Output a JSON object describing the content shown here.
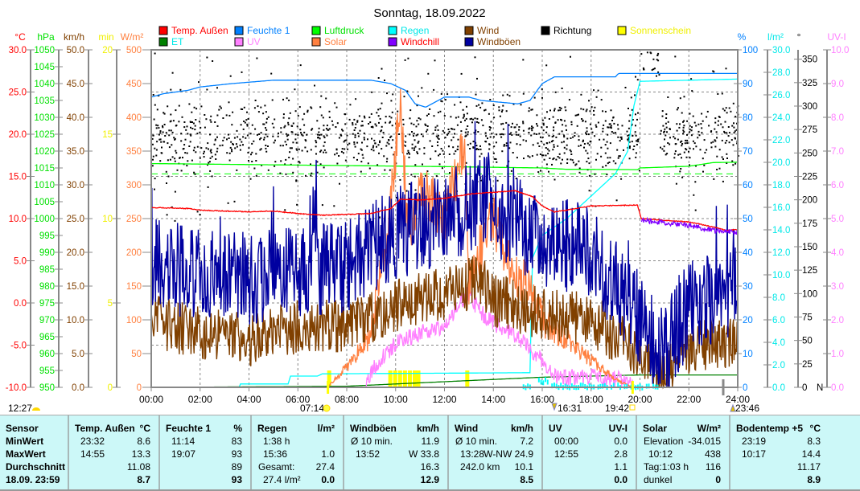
{
  "title": "Sonntag, 18.09.2022",
  "legend": [
    {
      "label": "Temp. Außen",
      "swatch": "#ff0000",
      "text": "#ff0000"
    },
    {
      "label": "Feuchte 1",
      "swatch": "#0080ff",
      "text": "#0080ff"
    },
    {
      "label": "Luftdruck",
      "swatch": "#00ff00",
      "text": "#00e000"
    },
    {
      "label": "Regen",
      "swatch": "#00ffff",
      "text": "#00e8e8"
    },
    {
      "label": "Wind",
      "swatch": "#804000",
      "text": "#804000"
    },
    {
      "label": "Richtung",
      "swatch": "#000000",
      "text": "#000000"
    },
    {
      "label": "Sonnenschein",
      "swatch": "#ffff00",
      "text": "#f0f000"
    },
    {
      "label": "ET",
      "swatch": "#008000",
      "text": "#00e8e8"
    },
    {
      "label": "UV",
      "swatch": "#ff80ff",
      "text": "#ff80ff"
    },
    {
      "label": "Solar",
      "swatch": "#ff8040",
      "text": "#ff8040"
    },
    {
      "label": "Windchill",
      "swatch": "#8000ff",
      "text": "#ff0000"
    },
    {
      "label": "Windböen",
      "swatch": "#0000a0",
      "text": "#804000"
    }
  ],
  "chart_data": {
    "type": "line",
    "title": "Sonntag, 18.09.2022",
    "x_ticks": [
      "00:00",
      "02:00",
      "04:00",
      "06:00",
      "08:00",
      "10:00",
      "12:00",
      "14:00",
      "16:00",
      "18:00",
      "20:00",
      "22:00",
      "24:00"
    ],
    "xlim_hours": [
      0,
      24
    ],
    "grid": true,
    "axes": {
      "temp": {
        "unit": "°C",
        "color": "#ff0000",
        "min": -10,
        "max": 30,
        "ticks": [
          "30.0",
          "25.0",
          "20.0",
          "15.0",
          "10.0",
          "5.0",
          "0.0",
          "-5.0",
          "-10.0"
        ]
      },
      "hpa": {
        "unit": "hPa",
        "color": "#00e000",
        "min": 950,
        "max": 1050,
        "ticks": [
          "1050",
          "1045",
          "1040",
          "1035",
          "1030",
          "1025",
          "1020",
          "1015",
          "1010",
          "1005",
          "1000",
          "995",
          "990",
          "985",
          "980",
          "975",
          "970",
          "965",
          "960",
          "955",
          "950"
        ]
      },
      "kmh": {
        "unit": "km/h",
        "color": "#804000",
        "min": 0,
        "max": 50,
        "ticks": [
          "50.0",
          "45.0",
          "40.0",
          "35.0",
          "30.0",
          "25.0",
          "20.0",
          "15.0",
          "10.0",
          "5.0",
          "0.0"
        ]
      },
      "min": {
        "unit": "min",
        "color": "#f0f000",
        "min": 0,
        "max": 20,
        "ticks": [
          "20",
          "15",
          "10",
          "5",
          "0"
        ]
      },
      "wm2": {
        "unit": "W/m²",
        "color": "#ff8040",
        "min": 0,
        "max": 500,
        "ticks": [
          "500",
          "450",
          "400",
          "350",
          "300",
          "250",
          "200",
          "150",
          "100",
          "50",
          "0"
        ]
      },
      "pct": {
        "unit": "%",
        "color": "#0080ff",
        "min": 0,
        "max": 100,
        "ticks": [
          "100",
          "90",
          "80",
          "70",
          "60",
          "50",
          "40",
          "30",
          "20",
          "10",
          "0"
        ]
      },
      "rain": {
        "unit": "l/m²",
        "color": "#00e8e8",
        "min": 0,
        "max": 30,
        "ticks": [
          "30.0",
          "28.0",
          "26.0",
          "24.0",
          "22.0",
          "20.0",
          "18.0",
          "16.0",
          "14.0",
          "12.0",
          "10.0",
          "8.0",
          "6.0",
          "4.0",
          "2.0",
          "0.0"
        ]
      },
      "deg": {
        "unit": "°",
        "color": "#000000",
        "min": 0,
        "max": 360,
        "ticks": [
          "350",
          "325",
          "300",
          "275",
          "250",
          "225",
          "200",
          "175",
          "150",
          "125",
          "100",
          "75",
          "50",
          "25",
          "0"
        ],
        "zero_label": "N"
      },
      "uv": {
        "unit": "UV-I",
        "color": "#ff80ff",
        "min": 0,
        "max": 10,
        "ticks": [
          "10.0",
          "9.0",
          "8.0",
          "7.0",
          "6.0",
          "5.0",
          "4.0",
          "3.0",
          "2.0",
          "1.0",
          "0.0"
        ]
      }
    },
    "reference_pressure": 1013.25,
    "series": [
      {
        "name": "Temp. Außen",
        "axis": "temp",
        "color": "#ff0000",
        "noise": 0.05,
        "points": [
          [
            0,
            11.3
          ],
          [
            1.5,
            11.2
          ],
          [
            2,
            11.0
          ],
          [
            4,
            10.8
          ],
          [
            5,
            10.9
          ],
          [
            6,
            10.6
          ],
          [
            7,
            10.4
          ],
          [
            8,
            10.5
          ],
          [
            9,
            10.6
          ],
          [
            9.8,
            11.2
          ],
          [
            10.2,
            12.3
          ],
          [
            11,
            12.2
          ],
          [
            12,
            12.4
          ],
          [
            13,
            12.9
          ],
          [
            14.9,
            13.3
          ],
          [
            15.6,
            12.6
          ],
          [
            16,
            11.5
          ],
          [
            16.5,
            10.8
          ],
          [
            17,
            11.0
          ],
          [
            18,
            11.5
          ],
          [
            19.9,
            11.6
          ],
          [
            20.05,
            10.0
          ],
          [
            21,
            9.8
          ],
          [
            22,
            9.6
          ],
          [
            23,
            9.0
          ],
          [
            23.53,
            8.6
          ],
          [
            24,
            8.7
          ]
        ]
      },
      {
        "name": "Feuchte 1",
        "axis": "pct",
        "color": "#0080ff",
        "noise": 0,
        "points": [
          [
            0,
            86
          ],
          [
            0.5,
            87
          ],
          [
            1.5,
            88
          ],
          [
            2,
            89
          ],
          [
            3.3,
            90
          ],
          [
            5,
            91
          ],
          [
            9,
            91
          ],
          [
            9.8,
            90
          ],
          [
            10.4,
            88
          ],
          [
            10.8,
            84
          ],
          [
            11.23,
            83
          ],
          [
            12,
            86
          ],
          [
            13,
            86
          ],
          [
            13.5,
            85
          ],
          [
            15,
            84
          ],
          [
            15.5,
            85
          ],
          [
            16,
            90
          ],
          [
            16.5,
            92
          ],
          [
            19,
            92
          ],
          [
            19.12,
            93
          ],
          [
            24,
            93
          ]
        ]
      },
      {
        "name": "Luftdruck",
        "axis": "hpa",
        "color": "#00ff00",
        "noise": 0,
        "points": [
          [
            0,
            1016.3
          ],
          [
            4,
            1016
          ],
          [
            8,
            1015.7
          ],
          [
            12,
            1015.4
          ],
          [
            16,
            1015
          ],
          [
            17,
            1014.6
          ],
          [
            19.9,
            1014.5
          ],
          [
            20,
            1015
          ],
          [
            22,
            1015.5
          ],
          [
            23,
            1016.6
          ],
          [
            24,
            1016.7
          ]
        ]
      },
      {
        "name": "Regen",
        "axis": "rain",
        "color": "#00ffff",
        "noise": 0,
        "points": [
          [
            0,
            0
          ],
          [
            3.6,
            0
          ],
          [
            3.65,
            0.3
          ],
          [
            5.6,
            0.3
          ],
          [
            5.7,
            1.0
          ],
          [
            6.8,
            1.0
          ],
          [
            7,
            1.2
          ],
          [
            15.5,
            1.3
          ],
          [
            15.6,
            11.5
          ],
          [
            16,
            13.5
          ],
          [
            17,
            15
          ],
          [
            18,
            17
          ],
          [
            19,
            19
          ],
          [
            19.5,
            21
          ],
          [
            19.75,
            25
          ],
          [
            20,
            27.2
          ],
          [
            24,
            27.4
          ]
        ]
      },
      {
        "name": "ET",
        "axis": "rain",
        "color": "#008000",
        "noise": 0,
        "points": [
          [
            0,
            0
          ],
          [
            8,
            0.1
          ],
          [
            10,
            0.3
          ],
          [
            12,
            0.5
          ],
          [
            14,
            0.7
          ],
          [
            16,
            0.9
          ],
          [
            18,
            1.0
          ],
          [
            20,
            1.1
          ],
          [
            24,
            1.1
          ]
        ]
      },
      {
        "name": "Solar",
        "axis": "wm2",
        "color": "#ff8040",
        "noise": 40,
        "points": [
          [
            0,
            0
          ],
          [
            7.2,
            0
          ],
          [
            7.6,
            15
          ],
          [
            8,
            30
          ],
          [
            9,
            80
          ],
          [
            9.7,
            220
          ],
          [
            10.2,
            438
          ],
          [
            10.5,
            220
          ],
          [
            11,
            300
          ],
          [
            12,
            250
          ],
          [
            12.8,
            360
          ],
          [
            13,
            160
          ],
          [
            14,
            250
          ],
          [
            15,
            160
          ],
          [
            15.5,
            150
          ],
          [
            16,
            100
          ],
          [
            17,
            70
          ],
          [
            18,
            40
          ],
          [
            19,
            12
          ],
          [
            19.7,
            0
          ],
          [
            24,
            0
          ]
        ]
      },
      {
        "name": "UV",
        "axis": "uv",
        "color": "#ff80ff",
        "noise": 0.25,
        "points": [
          [
            0,
            0
          ],
          [
            8.8,
            0
          ],
          [
            9,
            0.5
          ],
          [
            10,
            1.3
          ],
          [
            11,
            1.6
          ],
          [
            12,
            1.8
          ],
          [
            12.92,
            2.8
          ],
          [
            13.5,
            2.2
          ],
          [
            14,
            1.9
          ],
          [
            15,
            1.5
          ],
          [
            16,
            0.8
          ],
          [
            16.5,
            0.3
          ],
          [
            18,
            0.3
          ],
          [
            19.6,
            0.2
          ],
          [
            19.7,
            0
          ],
          [
            24,
            0
          ]
        ]
      },
      {
        "name": "Windchill",
        "axis": "temp",
        "color": "#8000ff",
        "noise": 0.3,
        "points": [
          [
            20.05,
            9.8
          ],
          [
            21,
            9.5
          ],
          [
            22,
            9.2
          ],
          [
            23,
            8.6
          ],
          [
            24,
            8.4
          ]
        ]
      },
      {
        "name": "Wind",
        "axis": "kmh",
        "color": "#804000",
        "noise": 4,
        "points": [
          [
            0,
            10
          ],
          [
            2,
            8
          ],
          [
            4,
            7
          ],
          [
            6,
            9
          ],
          [
            8,
            9
          ],
          [
            10,
            12
          ],
          [
            12,
            14
          ],
          [
            13.47,
            16
          ],
          [
            14,
            13
          ],
          [
            16,
            11
          ],
          [
            18,
            10
          ],
          [
            20,
            5
          ],
          [
            21,
            2
          ],
          [
            22,
            6
          ],
          [
            24,
            7
          ]
        ]
      },
      {
        "name": "Windböen",
        "axis": "kmh",
        "color": "#0000a0",
        "noise": 7,
        "points": [
          [
            0,
            18
          ],
          [
            4,
            16
          ],
          [
            8,
            18
          ],
          [
            10,
            23
          ],
          [
            12,
            25
          ],
          [
            13.87,
            28
          ],
          [
            14,
            26
          ],
          [
            16,
            22
          ],
          [
            18,
            20
          ],
          [
            20,
            10
          ],
          [
            21,
            5
          ],
          [
            22,
            12
          ],
          [
            24,
            14
          ]
        ]
      }
    ],
    "sunshine_minutes": [
      [
        7.2,
        1
      ],
      [
        9.7,
        1
      ],
      [
        9.9,
        1
      ],
      [
        10.1,
        1
      ],
      [
        10.3,
        1
      ],
      [
        10.5,
        1
      ],
      [
        10.7,
        1
      ],
      [
        10.85,
        1
      ],
      [
        12.85,
        1
      ]
    ],
    "direction_mean_deg": 268
  },
  "markers": {
    "left": "12:27",
    "sunrise": "07:14",
    "moonrise": "16:31",
    "sunset": "19:42",
    "moonset": "23:46"
  },
  "table": {
    "sensor": [
      "Sensor",
      "MinWert",
      "MaxWert",
      "Durchschnitt",
      "18.09. 23:59"
    ],
    "columns": [
      {
        "label": "Temp. Außen",
        "unit": "°C",
        "rows": [
          [
            "23:32",
            "8.6"
          ],
          [
            "14:55",
            "13.3"
          ],
          [
            "",
            "11.08"
          ],
          [
            "",
            "8.7"
          ]
        ]
      },
      {
        "label": "Feuchte 1",
        "unit": "%",
        "rows": [
          [
            "11:14",
            "83"
          ],
          [
            "19:07",
            "93"
          ],
          [
            "",
            "89"
          ],
          [
            "",
            "93"
          ]
        ]
      },
      {
        "label": "Regen",
        "unit": "l/m²",
        "rows": [
          [
            "1:38 h",
            ""
          ],
          [
            "15:36",
            "1.0"
          ],
          [
            "Gesamt:",
            "27.4"
          ],
          [
            "27.4 l/m²",
            "0.0"
          ]
        ]
      },
      {
        "label": "Windböen",
        "unit": "km/h",
        "rows": [
          [
            "Ø 10 min.",
            "11.9"
          ],
          [
            "13:52",
            "W 33.8"
          ],
          [
            "",
            "16.3"
          ],
          [
            "",
            "12.9"
          ]
        ]
      },
      {
        "label": "Wind",
        "unit": "km/h",
        "rows": [
          [
            "Ø 10 min.",
            "7.2"
          ],
          [
            "13:28",
            "W-NW 24.9"
          ],
          [
            "242.0 km",
            "10.1"
          ],
          [
            "",
            "8.5"
          ]
        ]
      },
      {
        "label": "UV",
        "unit": "UV-I",
        "rows": [
          [
            "00:00",
            "0.0"
          ],
          [
            "12:55",
            "2.8"
          ],
          [
            "",
            "1.1"
          ],
          [
            "",
            "0.0"
          ]
        ]
      },
      {
        "label": "Solar",
        "unit": "W/m²",
        "rows": [
          [
            "Elevation",
            "-34.015"
          ],
          [
            "10:12",
            "438"
          ],
          [
            "Tag:1:03 h",
            "116"
          ],
          [
            "dunkel",
            "0"
          ]
        ]
      },
      {
        "label": "Bodentemp +5",
        "unit": "°C",
        "rows": [
          [
            "23:19",
            "8.3"
          ],
          [
            "10:17",
            "14.4"
          ],
          [
            "",
            "11.17"
          ],
          [
            "",
            "8.9"
          ]
        ]
      }
    ]
  }
}
